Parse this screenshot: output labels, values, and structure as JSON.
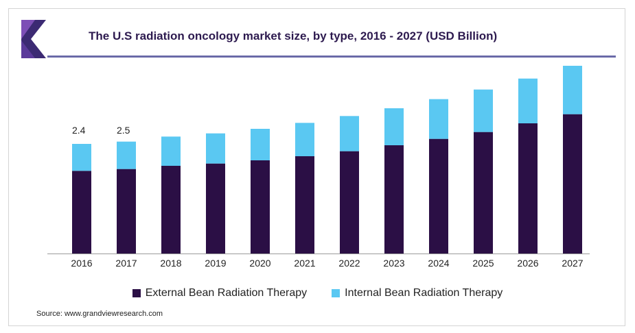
{
  "title": "The U.S radiation oncology market size, by type, 2016 - 2027 (USD Billion)",
  "source": "Source: www.grandviewresearch.com",
  "colors": {
    "external": "#2b0f45",
    "internal": "#5ac8f2",
    "logo_primary": "#3c2a73",
    "logo_accent": "#7d4fb6",
    "title": "#2d1a4f",
    "rule": "#6a6aa8"
  },
  "chart_data": {
    "type": "bar",
    "stacked": true,
    "categories": [
      "2016",
      "2017",
      "2018",
      "2019",
      "2020",
      "2021",
      "2022",
      "2023",
      "2024",
      "2025",
      "2026",
      "2027"
    ],
    "series": [
      {
        "name": "External Bean Radiation Therapy",
        "values": [
          1.81,
          1.85,
          1.92,
          1.97,
          2.04,
          2.13,
          2.24,
          2.37,
          2.51,
          2.66,
          2.85,
          3.05
        ]
      },
      {
        "name": "Internal Bean Radiation Therapy",
        "values": [
          0.59,
          0.6,
          0.64,
          0.66,
          0.69,
          0.73,
          0.77,
          0.81,
          0.87,
          0.93,
          0.98,
          1.06
        ]
      }
    ],
    "data_labels": [
      {
        "category": "2016",
        "text": "2.4"
      },
      {
        "category": "2017",
        "text": "2.5"
      }
    ],
    "ylim": [
      0,
      4.5
    ],
    "grid": false,
    "legend": "bottom"
  }
}
